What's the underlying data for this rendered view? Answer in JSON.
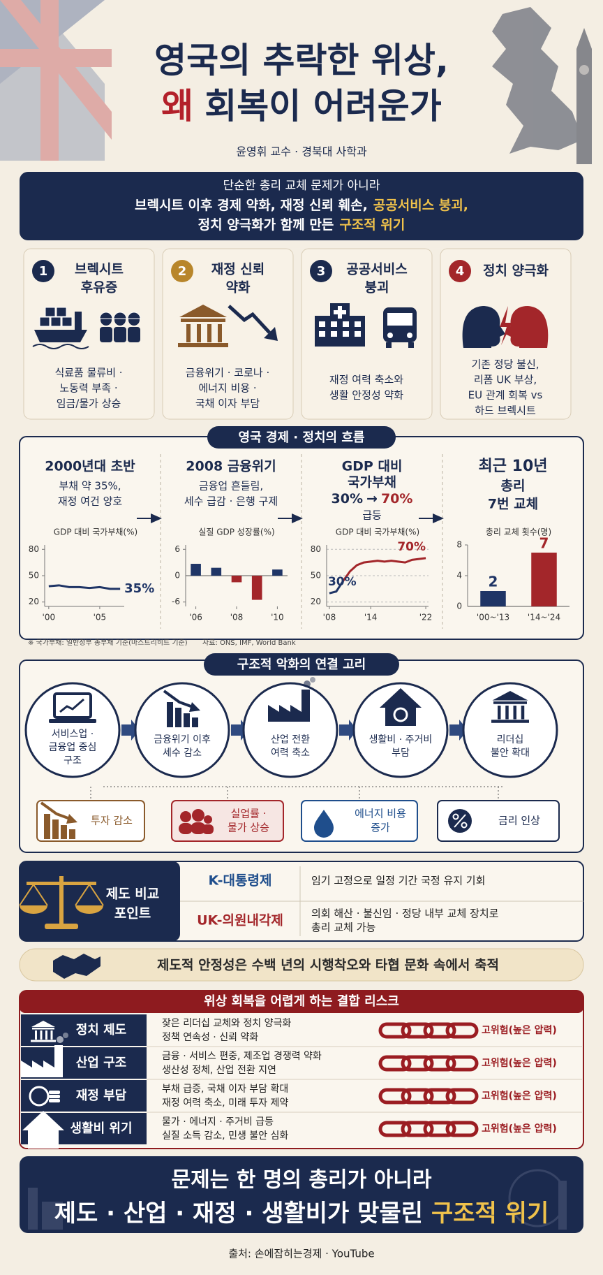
{
  "header": {
    "title_line1": "영국의 추락한 위상,",
    "title_line2_highlight": "왜",
    "title_line2": "회복이 어려운가",
    "byline": "윤영휘 교수 · 경북대 사학과"
  },
  "summary": {
    "line1": "단순한 총리 교체 문제가 아니라",
    "line2": "브렉시트 이후 경제 약화, 재정 신뢰 훼손,",
    "line2_highlight": "공공서비스 붕괴,",
    "line3": "정치 양극화가 함께 만든",
    "line3_highlight": "구조적 위기"
  },
  "causes": [
    {
      "number": 1,
      "title": [
        "브렉시트",
        "후유증"
      ],
      "desc": [
        "식료품 물류비 ·",
        "노동력 부족 ·",
        "임금/물가 상승"
      ]
    },
    {
      "number": 2,
      "title": [
        "재정 신뢰",
        "약화"
      ],
      "desc": [
        "금융위기 · 코로나 ·",
        "에너지 비용 ·",
        "국채 이자 부담"
      ]
    },
    {
      "number": 3,
      "title": [
        "공공서비스",
        "붕괴"
      ],
      "desc": [
        "재정 여력 축소와",
        "생활 안정성 약화"
      ]
    },
    {
      "number": 4,
      "title": [
        "정치 양극화"
      ],
      "desc": [
        "기존 정당 불신,",
        "리폼 UK 부상,",
        "EU 관계 회복 vs",
        "하드 브렉시트"
      ]
    }
  ],
  "timeline": {
    "heading": "영국 경제 · 정치의 흐름",
    "stages": [
      {
        "title": [
          "2000년대 초반"
        ],
        "desc": [
          "부채 약 35%,",
          "재정 여건 양호"
        ],
        "chart": {
          "type": "line",
          "title": "GDP 대비 국가부채(%)",
          "x": [
            2000,
            2001,
            2002,
            2003,
            2004,
            2005,
            2006,
            2007
          ],
          "values": [
            38,
            39,
            37,
            37,
            36,
            37,
            35,
            35
          ],
          "value_labels": [
            null,
            null,
            null,
            null,
            null,
            null,
            null,
            "35%"
          ],
          "color": "#1f3566",
          "xlim": [
            1999.6,
            2007.4
          ],
          "ylim": [
            15,
            85
          ],
          "yticks": [
            20,
            50,
            80
          ],
          "xticks": [
            {
              "value": 2000,
              "label": "'00"
            },
            {
              "value": 2005,
              "label": "'05"
            }
          ],
          "grid": false
        }
      },
      {
        "title": [
          "2008 금융위기"
        ],
        "desc": [
          "금융업 흔들림,",
          "세수 급감 · 은행 구제"
        ],
        "chart": {
          "type": "bar",
          "title": "실질 GDP 성장률(%)",
          "x": [
            2006,
            2007,
            2008,
            2009,
            2010
          ],
          "values": [
            2.7,
            1.8,
            -1.5,
            -5.5,
            1.4
          ],
          "color": "#1f3566",
          "negative_color": "#a3262a",
          "xlim": [
            2005.5,
            2010.5
          ],
          "ylim": [
            -7,
            7
          ],
          "yticks": [
            -6,
            0,
            6
          ],
          "xticks": [
            {
              "value": 2006,
              "label": "'06"
            },
            {
              "value": 2008,
              "label": "'08"
            },
            {
              "value": 2010,
              "label": "'10"
            }
          ]
        }
      },
      {
        "title": [
          "GDP 대비",
          "국가부채"
        ],
        "change": {
          "from": "30%",
          "arrow": "→",
          "to": "70%"
        },
        "desc": [
          "급등"
        ],
        "chart": {
          "type": "line",
          "title": "GDP 대비 국가부채(%)",
          "x": [
            2008,
            2009,
            2010,
            2011,
            2012,
            2013,
            2014,
            2015,
            2016,
            2017,
            2018,
            2019,
            2020,
            2021,
            2022
          ],
          "values": [
            30,
            32,
            44,
            55,
            62,
            65,
            66,
            67,
            66,
            67,
            66,
            65,
            68,
            69,
            70
          ],
          "value_labels": [
            "30%",
            null,
            null,
            null,
            null,
            null,
            null,
            null,
            null,
            null,
            null,
            null,
            null,
            null,
            "70%"
          ],
          "color": "#1f3566",
          "color_after": "#a3262a",
          "split_index": 2,
          "xlim": [
            2007.6,
            2022.4
          ],
          "ylim": [
            15,
            85
          ],
          "yticks": [
            20,
            50,
            80
          ],
          "xticks": [
            {
              "value": 2008,
              "label": "'08"
            },
            {
              "value": 2014,
              "label": "'14"
            },
            {
              "value": 2022,
              "label": "'22"
            }
          ],
          "grid": true
        }
      },
      {
        "title": [
          "최근 10년"
        ],
        "desc": [
          "총리",
          "7번 교체"
        ],
        "chart": {
          "type": "bar",
          "title": "총리 교체 횟수(명)",
          "categories": [
            "'00~'13",
            "'14~'24"
          ],
          "values": [
            2,
            7
          ],
          "colors": [
            "#1f3566",
            "#a3262a"
          ],
          "ylim": [
            0,
            8
          ],
          "yticks": [
            0,
            4,
            8
          ]
        }
      }
    ],
    "note": "※ 국가부채: 일반정부 총부채 기준(마스트리히트 기준)",
    "source": "자료: ONS, IMF, World Bank"
  },
  "chain": {
    "heading": "구조적 악화의 연결 고리",
    "nodes": [
      [
        "서비스업 ·",
        "금융업 중심",
        "구조"
      ],
      [
        "금융위기 이후",
        "세수 감소"
      ],
      [
        "산업 전환",
        "여력 축소"
      ],
      [
        "생활비 · 주거비",
        "부담"
      ],
      [
        "리더십",
        "불안 확대"
      ]
    ],
    "impacts": [
      [
        "투자 감소"
      ],
      [
        "실업률 ·",
        "물가 상승"
      ],
      [
        "에너지 비용",
        "증가"
      ],
      [
        "금리 인상"
      ]
    ]
  },
  "compare": {
    "title": [
      "제도 비교",
      "포인트"
    ],
    "rows": [
      {
        "system": "K-대통령제",
        "desc": [
          "임기 고정으로 일정 기간 국정 유지 기회"
        ]
      },
      {
        "system": "UK-의원내각제",
        "desc": [
          "의회 해산 · 불신임 · 정당 내부 교체 장치로",
          "총리 교체 가능"
        ]
      }
    ]
  },
  "banner": "제도적 안정성은 수백 년의 시행착오와 타협 문화 속에서 축적",
  "risks": {
    "heading": "위상 회복을 어렵게 하는 결합 리스크",
    "rows": [
      {
        "name": "정치 제도",
        "desc": [
          "잦은 리더십 교체와 정치 양극화",
          "정책 연속성 · 신뢰 약화"
        ],
        "level": "고위험(높은 압력)"
      },
      {
        "name": "산업 구조",
        "desc": [
          "금융 · 서비스 편중, 제조업 경쟁력 약화",
          "생산성 정체, 산업 전환 지연"
        ],
        "level": "고위험(높은 압력)"
      },
      {
        "name": "재정 부담",
        "desc": [
          "부채 급증, 국채 이자 부담 확대",
          "재정 여력 축소, 미래 투자 제약"
        ],
        "level": "고위험(높은 압력)"
      },
      {
        "name": "생활비 위기",
        "desc": [
          "물가 · 에너지 · 주거비 급등",
          "실질 소득 감소, 민생 불안 심화"
        ],
        "level": "고위험(높은 압력)"
      }
    ]
  },
  "conclusion": {
    "line1": "문제는 한 명의 총리가 아니라",
    "line2": "제도 · 산업 · 재정 · 생활비가 맞물린",
    "line2_highlight": "구조적 위기"
  },
  "footer": "출처: 손에잡히는경제 · YouTube"
}
